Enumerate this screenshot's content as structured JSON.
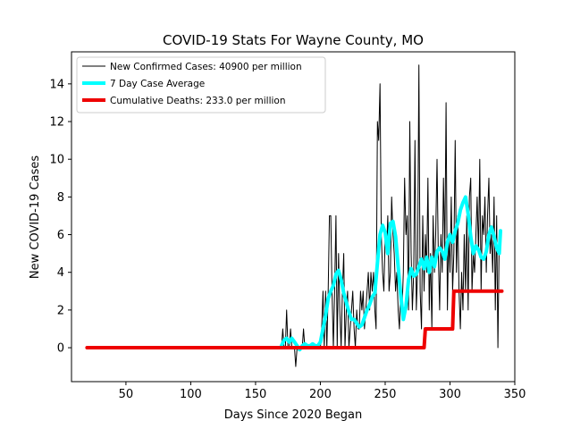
{
  "chart_data": {
    "type": "line",
    "title": "COVID-19 Stats For Wayne County, MO",
    "xlabel": "Days Since 2020 Began",
    "ylabel": "New COVID-19 Cases",
    "xlim": [
      8,
      350
    ],
    "ylim": [
      -1.8,
      15.7
    ],
    "xticks": [
      50,
      100,
      150,
      200,
      250,
      300,
      350
    ],
    "yticks": [
      0,
      2,
      4,
      6,
      8,
      10,
      12,
      14
    ],
    "grid": false,
    "legend_position": "top-left",
    "legend": [
      {
        "label": "New Confirmed Cases: 40900 per million",
        "color": "#000000"
      },
      {
        "label": "7 Day Case Average",
        "color": "#00ffff"
      },
      {
        "label": "Cumulative Deaths: 233.0 per million",
        "color": "#ee0000"
      }
    ],
    "series": [
      {
        "name": "New Confirmed Cases: 40900 per million",
        "color": "#000000",
        "points": [
          [
            170,
            0
          ],
          [
            171,
            1
          ],
          [
            172,
            0
          ],
          [
            173,
            0
          ],
          [
            174,
            2
          ],
          [
            175,
            0
          ],
          [
            176,
            0
          ],
          [
            177,
            1
          ],
          [
            178,
            0
          ],
          [
            179,
            0
          ],
          [
            180,
            0
          ],
          [
            181,
            -1
          ],
          [
            182,
            0
          ],
          [
            183,
            0
          ],
          [
            184,
            0
          ],
          [
            185,
            0
          ],
          [
            186,
            0
          ],
          [
            187,
            1
          ],
          [
            188,
            0
          ],
          [
            189,
            0
          ],
          [
            190,
            0
          ],
          [
            191,
            0
          ],
          [
            192,
            0
          ],
          [
            193,
            0
          ],
          [
            194,
            0
          ],
          [
            195,
            0
          ],
          [
            196,
            0
          ],
          [
            197,
            0
          ],
          [
            198,
            0
          ],
          [
            199,
            0
          ],
          [
            200,
            0
          ],
          [
            201,
            1
          ],
          [
            202,
            3
          ],
          [
            203,
            0
          ],
          [
            204,
            3
          ],
          [
            205,
            0
          ],
          [
            206,
            3
          ],
          [
            207,
            7
          ],
          [
            208,
            7
          ],
          [
            209,
            3
          ],
          [
            210,
            0
          ],
          [
            211,
            3
          ],
          [
            212,
            7
          ],
          [
            213,
            0
          ],
          [
            214,
            5
          ],
          [
            215,
            2
          ],
          [
            216,
            0
          ],
          [
            217,
            3
          ],
          [
            218,
            5
          ],
          [
            219,
            0
          ],
          [
            220,
            2
          ],
          [
            221,
            3
          ],
          [
            222,
            0
          ],
          [
            223,
            1
          ],
          [
            224,
            2
          ],
          [
            225,
            3
          ],
          [
            226,
            1
          ],
          [
            227,
            0
          ],
          [
            228,
            2
          ],
          [
            229,
            1
          ],
          [
            230,
            1
          ],
          [
            231,
            3
          ],
          [
            232,
            2
          ],
          [
            233,
            3
          ],
          [
            234,
            1
          ],
          [
            235,
            2
          ],
          [
            236,
            3
          ],
          [
            237,
            4
          ],
          [
            238,
            2
          ],
          [
            239,
            4
          ],
          [
            240,
            3
          ],
          [
            241,
            4
          ],
          [
            242,
            2
          ],
          [
            243,
            1
          ],
          [
            244,
            12
          ],
          [
            245,
            11
          ],
          [
            246,
            14
          ],
          [
            247,
            6
          ],
          [
            248,
            4
          ],
          [
            249,
            3
          ],
          [
            250,
            6
          ],
          [
            251,
            5
          ],
          [
            252,
            7
          ],
          [
            253,
            3
          ],
          [
            254,
            4
          ],
          [
            255,
            8
          ],
          [
            256,
            6
          ],
          [
            257,
            5
          ],
          [
            258,
            3
          ],
          [
            259,
            4
          ],
          [
            260,
            2
          ],
          [
            261,
            1
          ],
          [
            262,
            3
          ],
          [
            263,
            2
          ],
          [
            264,
            4
          ],
          [
            265,
            9
          ],
          [
            266,
            6
          ],
          [
            267,
            7
          ],
          [
            268,
            2
          ],
          [
            269,
            12
          ],
          [
            270,
            5
          ],
          [
            271,
            2
          ],
          [
            272,
            4
          ],
          [
            273,
            11
          ],
          [
            274,
            2
          ],
          [
            275,
            4
          ],
          [
            276,
            15
          ],
          [
            277,
            3
          ],
          [
            278,
            1
          ],
          [
            279,
            7
          ],
          [
            280,
            3
          ],
          [
            281,
            6
          ],
          [
            282,
            4
          ],
          [
            283,
            9
          ],
          [
            284,
            2
          ],
          [
            285,
            5
          ],
          [
            286,
            1
          ],
          [
            287,
            7
          ],
          [
            288,
            4
          ],
          [
            289,
            6
          ],
          [
            290,
            10
          ],
          [
            291,
            5
          ],
          [
            292,
            2
          ],
          [
            293,
            6
          ],
          [
            294,
            4
          ],
          [
            295,
            9
          ],
          [
            296,
            5
          ],
          [
            297,
            13
          ],
          [
            298,
            2
          ],
          [
            299,
            6
          ],
          [
            300,
            4
          ],
          [
            301,
            8
          ],
          [
            302,
            3
          ],
          [
            303,
            5
          ],
          [
            304,
            11
          ],
          [
            305,
            4
          ],
          [
            306,
            7
          ],
          [
            307,
            3
          ],
          [
            308,
            1
          ],
          [
            309,
            4
          ],
          [
            310,
            2
          ],
          [
            311,
            6
          ],
          [
            312,
            3
          ],
          [
            313,
            7
          ],
          [
            314,
            2
          ],
          [
            315,
            8
          ],
          [
            316,
            9
          ],
          [
            317,
            3
          ],
          [
            318,
            5
          ],
          [
            319,
            4
          ],
          [
            320,
            6
          ],
          [
            321,
            8
          ],
          [
            322,
            5
          ],
          [
            323,
            10
          ],
          [
            324,
            3
          ],
          [
            325,
            7
          ],
          [
            326,
            6
          ],
          [
            327,
            8
          ],
          [
            328,
            4
          ],
          [
            329,
            7
          ],
          [
            330,
            9
          ],
          [
            331,
            5
          ],
          [
            332,
            6
          ],
          [
            333,
            4
          ],
          [
            334,
            8
          ],
          [
            335,
            2
          ],
          [
            336,
            7
          ],
          [
            337,
            0
          ],
          [
            338,
            6
          ],
          [
            339,
            5
          ]
        ]
      },
      {
        "name": "7 Day Case Average",
        "color": "#00ffff",
        "points": [
          [
            170,
            0.1
          ],
          [
            172,
            0.4
          ],
          [
            174,
            0.5
          ],
          [
            176,
            0.3
          ],
          [
            178,
            0.5
          ],
          [
            180,
            0.3
          ],
          [
            182,
            0.1
          ],
          [
            184,
            -0.1
          ],
          [
            186,
            0.1
          ],
          [
            188,
            0.2
          ],
          [
            190,
            0.1
          ],
          [
            192,
            0.1
          ],
          [
            194,
            0.2
          ],
          [
            196,
            0.1
          ],
          [
            198,
            0.1
          ],
          [
            200,
            0.3
          ],
          [
            202,
            1.0
          ],
          [
            204,
            1.7
          ],
          [
            206,
            2.6
          ],
          [
            208,
            3.0
          ],
          [
            210,
            3.3
          ],
          [
            212,
            3.9
          ],
          [
            214,
            4.1
          ],
          [
            216,
            3.6
          ],
          [
            218,
            2.9
          ],
          [
            220,
            2.4
          ],
          [
            222,
            1.9
          ],
          [
            224,
            1.5
          ],
          [
            226,
            1.5
          ],
          [
            228,
            1.3
          ],
          [
            230,
            1.1
          ],
          [
            232,
            1.2
          ],
          [
            234,
            1.6
          ],
          [
            236,
            2.0
          ],
          [
            238,
            2.3
          ],
          [
            240,
            2.7
          ],
          [
            242,
            2.9
          ],
          [
            244,
            4.5
          ],
          [
            246,
            6.0
          ],
          [
            248,
            6.5
          ],
          [
            250,
            6.1
          ],
          [
            252,
            5.0
          ],
          [
            254,
            6.6
          ],
          [
            256,
            6.7
          ],
          [
            258,
            5.9
          ],
          [
            260,
            4.3
          ],
          [
            262,
            2.8
          ],
          [
            264,
            1.5
          ],
          [
            266,
            2.2
          ],
          [
            268,
            3.6
          ],
          [
            270,
            4.2
          ],
          [
            272,
            3.8
          ],
          [
            274,
            3.9
          ],
          [
            276,
            4.3
          ],
          [
            278,
            4.7
          ],
          [
            280,
            4.2
          ],
          [
            282,
            4.8
          ],
          [
            284,
            4.0
          ],
          [
            286,
            4.8
          ],
          [
            288,
            4.3
          ],
          [
            290,
            5.1
          ],
          [
            292,
            5.3
          ],
          [
            294,
            5.1
          ],
          [
            296,
            4.7
          ],
          [
            298,
            5.6
          ],
          [
            300,
            6.0
          ],
          [
            302,
            5.6
          ],
          [
            304,
            6.2
          ],
          [
            306,
            6.6
          ],
          [
            308,
            7.3
          ],
          [
            310,
            7.7
          ],
          [
            312,
            8.0
          ],
          [
            314,
            7.1
          ],
          [
            316,
            5.9
          ],
          [
            318,
            5.0
          ],
          [
            320,
            5.4
          ],
          [
            322,
            5.2
          ],
          [
            324,
            4.8
          ],
          [
            326,
            4.7
          ],
          [
            328,
            5.1
          ],
          [
            330,
            6.0
          ],
          [
            332,
            6.4
          ],
          [
            334,
            5.9
          ],
          [
            336,
            5.3
          ],
          [
            338,
            5.0
          ],
          [
            339,
            6.2
          ]
        ]
      },
      {
        "name": "Cumulative Deaths: 233.0 per million",
        "color": "#ee0000",
        "points": [
          [
            20,
            0
          ],
          [
            280,
            0
          ],
          [
            281,
            1
          ],
          [
            302,
            1
          ],
          [
            303,
            3
          ],
          [
            340,
            3
          ]
        ]
      }
    ]
  }
}
